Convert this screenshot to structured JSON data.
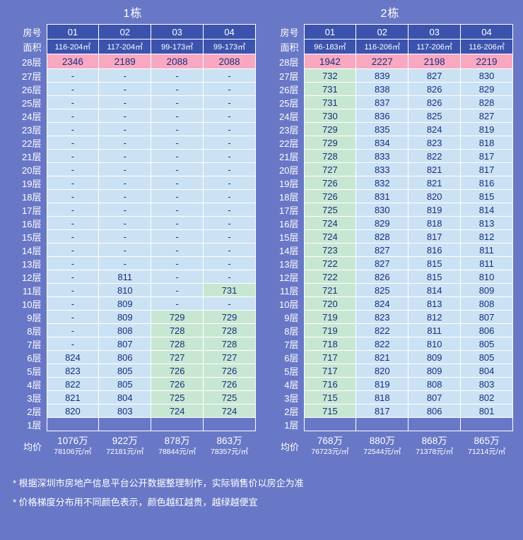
{
  "colors": {
    "background": "#6978C6",
    "header_cell": "#3B53AD",
    "pink": "#F9A8C2",
    "light_blue": "#CBE2F4",
    "light_green": "#C8E7D2",
    "cell_text": "#172F7D",
    "border": "#FFFFFF"
  },
  "labels": {
    "room": "房号",
    "area": "面积",
    "avg": "均价"
  },
  "chart_data": [
    {
      "type": "table",
      "title": "1栋",
      "columns": [
        "01",
        "02",
        "03",
        "04"
      ],
      "areas": [
        "116-204㎡",
        "117-204㎡",
        "99-173㎡",
        "99-173㎡"
      ],
      "rows": [
        {
          "floor": "28层",
          "values": [
            "2346",
            "2189",
            "2088",
            "2088"
          ]
        },
        {
          "floor": "27层",
          "values": [
            "-",
            "-",
            "-",
            "-"
          ]
        },
        {
          "floor": "26层",
          "values": [
            "-",
            "-",
            "-",
            "-"
          ]
        },
        {
          "floor": "25层",
          "values": [
            "-",
            "-",
            "-",
            "-"
          ]
        },
        {
          "floor": "24层",
          "values": [
            "-",
            "-",
            "-",
            "-"
          ]
        },
        {
          "floor": "23层",
          "values": [
            "-",
            "-",
            "-",
            "-"
          ]
        },
        {
          "floor": "22层",
          "values": [
            "-",
            "-",
            "-",
            "-"
          ]
        },
        {
          "floor": "21层",
          "values": [
            "-",
            "-",
            "-",
            "-"
          ]
        },
        {
          "floor": "20层",
          "values": [
            "-",
            "-",
            "-",
            "-"
          ]
        },
        {
          "floor": "19层",
          "values": [
            "-",
            "-",
            "-",
            "-"
          ]
        },
        {
          "floor": "18层",
          "values": [
            "-",
            "-",
            "-",
            "-"
          ]
        },
        {
          "floor": "17层",
          "values": [
            "-",
            "-",
            "-",
            "-"
          ]
        },
        {
          "floor": "16层",
          "values": [
            "-",
            "-",
            "-",
            "-"
          ]
        },
        {
          "floor": "15层",
          "values": [
            "-",
            "-",
            "-",
            "-"
          ]
        },
        {
          "floor": "14层",
          "values": [
            "-",
            "-",
            "-",
            "-"
          ]
        },
        {
          "floor": "13层",
          "values": [
            "-",
            "-",
            "-",
            "-"
          ]
        },
        {
          "floor": "12层",
          "values": [
            "-",
            "811",
            "-",
            "-"
          ]
        },
        {
          "floor": "11层",
          "values": [
            "-",
            "810",
            "-",
            "731"
          ]
        },
        {
          "floor": "10层",
          "values": [
            "-",
            "809",
            "-",
            "-"
          ]
        },
        {
          "floor": "9层",
          "values": [
            "-",
            "809",
            "729",
            "729"
          ]
        },
        {
          "floor": "8层",
          "values": [
            "-",
            "808",
            "728",
            "728"
          ]
        },
        {
          "floor": "7层",
          "values": [
            "-",
            "807",
            "728",
            "728"
          ]
        },
        {
          "floor": "6层",
          "values": [
            "824",
            "806",
            "727",
            "727"
          ]
        },
        {
          "floor": "5层",
          "values": [
            "823",
            "805",
            "726",
            "726"
          ]
        },
        {
          "floor": "4层",
          "values": [
            "822",
            "805",
            "726",
            "726"
          ]
        },
        {
          "floor": "3层",
          "values": [
            "821",
            "804",
            "725",
            "725"
          ]
        },
        {
          "floor": "2层",
          "values": [
            "820",
            "803",
            "724",
            "724"
          ]
        },
        {
          "floor": "1层",
          "values": [
            "",
            "",
            "",
            ""
          ]
        }
      ],
      "averages": [
        {
          "total": "1076万",
          "unit_price": "78106元/㎡"
        },
        {
          "total": "922万",
          "unit_price": "72181元/㎡"
        },
        {
          "total": "878万",
          "unit_price": "78844元/㎡"
        },
        {
          "total": "863万",
          "unit_price": "78357元/㎡"
        }
      ]
    },
    {
      "type": "table",
      "title": "2栋",
      "columns": [
        "01",
        "02",
        "03",
        "04"
      ],
      "areas": [
        "96-183㎡",
        "116-206㎡",
        "117-206㎡",
        "116-206㎡"
      ],
      "rows": [
        {
          "floor": "28层",
          "values": [
            "1942",
            "2227",
            "2198",
            "2219"
          ]
        },
        {
          "floor": "27层",
          "values": [
            "732",
            "839",
            "827",
            "830"
          ]
        },
        {
          "floor": "26层",
          "values": [
            "731",
            "838",
            "826",
            "829"
          ]
        },
        {
          "floor": "25层",
          "values": [
            "731",
            "837",
            "826",
            "828"
          ]
        },
        {
          "floor": "24层",
          "values": [
            "730",
            "836",
            "825",
            "827"
          ]
        },
        {
          "floor": "23层",
          "values": [
            "729",
            "835",
            "824",
            "819"
          ]
        },
        {
          "floor": "22层",
          "values": [
            "729",
            "834",
            "823",
            "818"
          ]
        },
        {
          "floor": "21层",
          "values": [
            "728",
            "833",
            "822",
            "817"
          ]
        },
        {
          "floor": "20层",
          "values": [
            "727",
            "833",
            "821",
            "817"
          ]
        },
        {
          "floor": "19层",
          "values": [
            "726",
            "832",
            "821",
            "816"
          ]
        },
        {
          "floor": "18层",
          "values": [
            "726",
            "831",
            "820",
            "815"
          ]
        },
        {
          "floor": "17层",
          "values": [
            "725",
            "830",
            "819",
            "814"
          ]
        },
        {
          "floor": "16层",
          "values": [
            "724",
            "829",
            "818",
            "813"
          ]
        },
        {
          "floor": "15层",
          "values": [
            "724",
            "828",
            "817",
            "812"
          ]
        },
        {
          "floor": "14层",
          "values": [
            "723",
            "827",
            "816",
            "811"
          ]
        },
        {
          "floor": "13层",
          "values": [
            "722",
            "827",
            "815",
            "811"
          ]
        },
        {
          "floor": "12层",
          "values": [
            "722",
            "826",
            "815",
            "810"
          ]
        },
        {
          "floor": "11层",
          "values": [
            "721",
            "825",
            "814",
            "809"
          ]
        },
        {
          "floor": "10层",
          "values": [
            "720",
            "824",
            "813",
            "808"
          ]
        },
        {
          "floor": "9层",
          "values": [
            "719",
            "823",
            "812",
            "807"
          ]
        },
        {
          "floor": "8层",
          "values": [
            "719",
            "822",
            "811",
            "806"
          ]
        },
        {
          "floor": "7层",
          "values": [
            "718",
            "822",
            "810",
            "805"
          ]
        },
        {
          "floor": "6层",
          "values": [
            "717",
            "821",
            "809",
            "805"
          ]
        },
        {
          "floor": "5层",
          "values": [
            "717",
            "820",
            "809",
            "804"
          ]
        },
        {
          "floor": "4层",
          "values": [
            "716",
            "819",
            "808",
            "803"
          ]
        },
        {
          "floor": "3层",
          "values": [
            "715",
            "818",
            "807",
            "802"
          ]
        },
        {
          "floor": "2层",
          "values": [
            "715",
            "817",
            "806",
            "801"
          ]
        },
        {
          "floor": "1层",
          "values": [
            "",
            "",
            "",
            ""
          ]
        }
      ],
      "averages": [
        {
          "total": "768万",
          "unit_price": "76723元/㎡"
        },
        {
          "total": "880万",
          "unit_price": "72544元/㎡"
        },
        {
          "total": "868万",
          "unit_price": "71378元/㎡"
        },
        {
          "total": "865万",
          "unit_price": "71214元/㎡"
        }
      ]
    }
  ],
  "footnotes": [
    "* 根据深圳市房地产信息平台公开数据整理制作，实际销售价以房企为准",
    "* 价格梯度分布用不同颜色表示，颜色越红越贵，越绿越便宜"
  ]
}
